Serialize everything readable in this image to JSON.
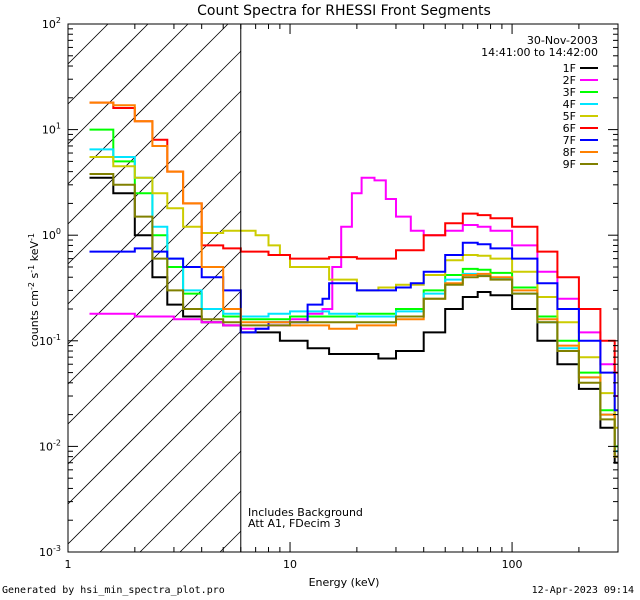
{
  "chart_data": {
    "type": "line",
    "title": "Count Spectra for RHESSI Front Segments",
    "xlabel": "Energy (keV)",
    "ylabel_parts": [
      "counts cm",
      "-2",
      " s",
      "-1",
      " keV",
      "-1"
    ],
    "xscale": "log",
    "yscale": "log",
    "xlim": [
      1,
      300
    ],
    "ylim": [
      0.001,
      100
    ],
    "x_tick_labels": [
      {
        "value": 1,
        "label": "1"
      },
      {
        "value": 10,
        "label": "10"
      },
      {
        "value": 100,
        "label": "100"
      }
    ],
    "y_tick_labels": [
      {
        "exp": -3,
        "label": "10",
        "sup": "-3"
      },
      {
        "exp": -2,
        "label": "10",
        "sup": "-2"
      },
      {
        "exp": -1,
        "label": "10",
        "sup": "-1"
      },
      {
        "exp": 0,
        "label": "10",
        "sup": "0"
      },
      {
        "exp": 1,
        "label": "10",
        "sup": "1"
      },
      {
        "exp": 2,
        "label": "10",
        "sup": "2"
      }
    ],
    "hatched_region": {
      "x_from": 1,
      "x_to": 6
    },
    "vertical_line_x": 6,
    "date": "30-Nov-2003",
    "time_range": "14:41:00 to 14:42:00",
    "annotations": [
      "Includes Background",
      "Att A1, FDecim 3"
    ],
    "series": [
      {
        "name": "1F",
        "color": "#000000",
        "points": [
          [
            1.25,
            3.5
          ],
          [
            1.6,
            2.5
          ],
          [
            2.0,
            1.0
          ],
          [
            2.4,
            0.4
          ],
          [
            2.8,
            0.22
          ],
          [
            3.3,
            0.17
          ],
          [
            4.0,
            0.15
          ],
          [
            5.0,
            0.14
          ],
          [
            6.0,
            0.12
          ],
          [
            7.0,
            0.12
          ],
          [
            9.0,
            0.1
          ],
          [
            12,
            0.085
          ],
          [
            15,
            0.075
          ],
          [
            20,
            0.075
          ],
          [
            25,
            0.068
          ],
          [
            30,
            0.08
          ],
          [
            40,
            0.12
          ],
          [
            50,
            0.2
          ],
          [
            60,
            0.26
          ],
          [
            70,
            0.29
          ],
          [
            80,
            0.27
          ],
          [
            100,
            0.2
          ],
          [
            130,
            0.1
          ],
          [
            160,
            0.06
          ],
          [
            200,
            0.035
          ],
          [
            250,
            0.015
          ],
          [
            290,
            0.007
          ]
        ]
      },
      {
        "name": "2F",
        "color": "#ff00ff",
        "points": [
          [
            1.25,
            0.18
          ],
          [
            2.0,
            0.17
          ],
          [
            3.0,
            0.16
          ],
          [
            4.0,
            0.15
          ],
          [
            5.0,
            0.14
          ],
          [
            6.0,
            0.13
          ],
          [
            8.0,
            0.14
          ],
          [
            10,
            0.16
          ],
          [
            12,
            0.18
          ],
          [
            14,
            0.2
          ],
          [
            15.5,
            0.5
          ],
          [
            17,
            1.2
          ],
          [
            19,
            2.5
          ],
          [
            21,
            3.5
          ],
          [
            24,
            3.3
          ],
          [
            27,
            2.2
          ],
          [
            30,
            1.5
          ],
          [
            35,
            1.1
          ],
          [
            40,
            1.0
          ],
          [
            50,
            1.1
          ],
          [
            60,
            1.25
          ],
          [
            70,
            1.2
          ],
          [
            80,
            1.1
          ],
          [
            100,
            0.8
          ],
          [
            130,
            0.45
          ],
          [
            160,
            0.25
          ],
          [
            200,
            0.12
          ],
          [
            250,
            0.06
          ],
          [
            290,
            0.03
          ]
        ]
      },
      {
        "name": "3F",
        "color": "#00ff00",
        "points": [
          [
            1.25,
            10.0
          ],
          [
            1.6,
            5.0
          ],
          [
            2.0,
            2.5
          ],
          [
            2.4,
            1.0
          ],
          [
            2.8,
            0.5
          ],
          [
            3.3,
            0.28
          ],
          [
            4.0,
            0.2
          ],
          [
            5.0,
            0.17
          ],
          [
            6.0,
            0.16
          ],
          [
            8.0,
            0.16
          ],
          [
            10,
            0.17
          ],
          [
            15,
            0.17
          ],
          [
            20,
            0.18
          ],
          [
            30,
            0.2
          ],
          [
            40,
            0.3
          ],
          [
            50,
            0.42
          ],
          [
            60,
            0.48
          ],
          [
            70,
            0.47
          ],
          [
            80,
            0.44
          ],
          [
            100,
            0.32
          ],
          [
            130,
            0.17
          ],
          [
            160,
            0.1
          ],
          [
            200,
            0.05
          ],
          [
            250,
            0.022
          ],
          [
            290,
            0.01
          ]
        ]
      },
      {
        "name": "4F",
        "color": "#00e5ff",
        "points": [
          [
            1.25,
            6.5
          ],
          [
            1.6,
            5.5
          ],
          [
            2.0,
            3.5
          ],
          [
            2.4,
            1.2
          ],
          [
            2.8,
            0.6
          ],
          [
            3.3,
            0.3
          ],
          [
            4.0,
            0.2
          ],
          [
            5.0,
            0.18
          ],
          [
            6.0,
            0.17
          ],
          [
            8.0,
            0.18
          ],
          [
            10,
            0.19
          ],
          [
            15,
            0.18
          ],
          [
            20,
            0.17
          ],
          [
            30,
            0.19
          ],
          [
            40,
            0.28
          ],
          [
            50,
            0.38
          ],
          [
            60,
            0.43
          ],
          [
            70,
            0.42
          ],
          [
            80,
            0.39
          ],
          [
            100,
            0.28
          ],
          [
            130,
            0.15
          ],
          [
            160,
            0.085
          ],
          [
            200,
            0.045
          ],
          [
            250,
            0.02
          ],
          [
            290,
            0.009
          ]
        ]
      },
      {
        "name": "5F",
        "color": "#cccc00",
        "points": [
          [
            1.25,
            5.5
          ],
          [
            1.6,
            4.5
          ],
          [
            2.0,
            3.5
          ],
          [
            2.4,
            2.5
          ],
          [
            2.8,
            1.8
          ],
          [
            3.3,
            1.2
          ],
          [
            4.0,
            1.05
          ],
          [
            5.0,
            1.1
          ],
          [
            6.0,
            1.1
          ],
          [
            7.0,
            1.0
          ],
          [
            8.0,
            0.8
          ],
          [
            9.0,
            0.65
          ],
          [
            10,
            0.5
          ],
          [
            12,
            0.5
          ],
          [
            15,
            0.38
          ],
          [
            20,
            0.3
          ],
          [
            25,
            0.32
          ],
          [
            30,
            0.34
          ],
          [
            40,
            0.42
          ],
          [
            50,
            0.58
          ],
          [
            60,
            0.65
          ],
          [
            70,
            0.64
          ],
          [
            80,
            0.6
          ],
          [
            100,
            0.45
          ],
          [
            130,
            0.26
          ],
          [
            160,
            0.15
          ],
          [
            200,
            0.07
          ],
          [
            250,
            0.032
          ],
          [
            290,
            0.015
          ]
        ]
      },
      {
        "name": "6F",
        "color": "#ff0000",
        "points": [
          [
            1.25,
            18.0
          ],
          [
            1.6,
            16.0
          ],
          [
            2.0,
            12.0
          ],
          [
            2.4,
            8.0
          ],
          [
            2.8,
            4.0
          ],
          [
            3.3,
            2.0
          ],
          [
            4.0,
            0.8
          ],
          [
            5.0,
            0.75
          ],
          [
            6.0,
            0.7
          ],
          [
            7.0,
            0.7
          ],
          [
            8.0,
            0.65
          ],
          [
            10,
            0.6
          ],
          [
            12,
            0.6
          ],
          [
            15,
            0.62
          ],
          [
            20,
            0.6
          ],
          [
            25,
            0.6
          ],
          [
            30,
            0.72
          ],
          [
            40,
            1.0
          ],
          [
            50,
            1.3
          ],
          [
            60,
            1.6
          ],
          [
            70,
            1.55
          ],
          [
            80,
            1.45
          ],
          [
            100,
            1.2
          ],
          [
            130,
            0.7
          ],
          [
            160,
            0.4
          ],
          [
            200,
            0.2
          ],
          [
            250,
            0.1
          ],
          [
            290,
            0.05
          ]
        ]
      },
      {
        "name": "7F",
        "color": "#0000ff",
        "points": [
          [
            1.25,
            0.7
          ],
          [
            1.6,
            0.7
          ],
          [
            2.0,
            0.75
          ],
          [
            2.4,
            0.7
          ],
          [
            2.8,
            0.6
          ],
          [
            3.3,
            0.5
          ],
          [
            4.0,
            0.4
          ],
          [
            5.0,
            0.3
          ],
          [
            6.0,
            0.12
          ],
          [
            7.0,
            0.13
          ],
          [
            8.0,
            0.15
          ],
          [
            10,
            0.15
          ],
          [
            12,
            0.22
          ],
          [
            14,
            0.25
          ],
          [
            15,
            0.35
          ],
          [
            20,
            0.3
          ],
          [
            25,
            0.3
          ],
          [
            30,
            0.32
          ],
          [
            35,
            0.35
          ],
          [
            40,
            0.45
          ],
          [
            50,
            0.65
          ],
          [
            60,
            0.85
          ],
          [
            70,
            0.82
          ],
          [
            80,
            0.75
          ],
          [
            100,
            0.6
          ],
          [
            130,
            0.35
          ],
          [
            160,
            0.2
          ],
          [
            200,
            0.1
          ],
          [
            250,
            0.05
          ],
          [
            290,
            0.022
          ]
        ]
      },
      {
        "name": "8F",
        "color": "#ff8000",
        "points": [
          [
            1.25,
            18.0
          ],
          [
            1.6,
            17.0
          ],
          [
            2.0,
            12.0
          ],
          [
            2.4,
            7.0
          ],
          [
            2.8,
            4.0
          ],
          [
            3.3,
            2.0
          ],
          [
            4.0,
            0.5
          ],
          [
            5.0,
            0.2
          ],
          [
            6.0,
            0.15
          ],
          [
            8.0,
            0.15
          ],
          [
            10,
            0.14
          ],
          [
            15,
            0.13
          ],
          [
            20,
            0.14
          ],
          [
            30,
            0.16
          ],
          [
            40,
            0.25
          ],
          [
            50,
            0.35
          ],
          [
            60,
            0.42
          ],
          [
            70,
            0.43
          ],
          [
            80,
            0.4
          ],
          [
            100,
            0.3
          ],
          [
            130,
            0.16
          ],
          [
            160,
            0.09
          ],
          [
            200,
            0.045
          ],
          [
            250,
            0.02
          ],
          [
            290,
            0.008
          ]
        ]
      },
      {
        "name": "9F",
        "color": "#808000",
        "points": [
          [
            1.25,
            3.8
          ],
          [
            1.6,
            3.0
          ],
          [
            2.0,
            1.5
          ],
          [
            2.4,
            0.6
          ],
          [
            2.8,
            0.3
          ],
          [
            3.3,
            0.2
          ],
          [
            4.0,
            0.16
          ],
          [
            5.0,
            0.15
          ],
          [
            6.0,
            0.14
          ],
          [
            8.0,
            0.14
          ],
          [
            10,
            0.15
          ],
          [
            15,
            0.15
          ],
          [
            20,
            0.15
          ],
          [
            30,
            0.17
          ],
          [
            40,
            0.25
          ],
          [
            50,
            0.34
          ],
          [
            60,
            0.4
          ],
          [
            70,
            0.41
          ],
          [
            80,
            0.38
          ],
          [
            100,
            0.28
          ],
          [
            130,
            0.15
          ],
          [
            160,
            0.08
          ],
          [
            200,
            0.04
          ],
          [
            250,
            0.018
          ],
          [
            290,
            0.008
          ]
        ]
      }
    ]
  },
  "footer": {
    "generated_by": "Generated by hsi_min_spectra_plot.pro",
    "timestamp": "12-Apr-2023 09:14"
  }
}
